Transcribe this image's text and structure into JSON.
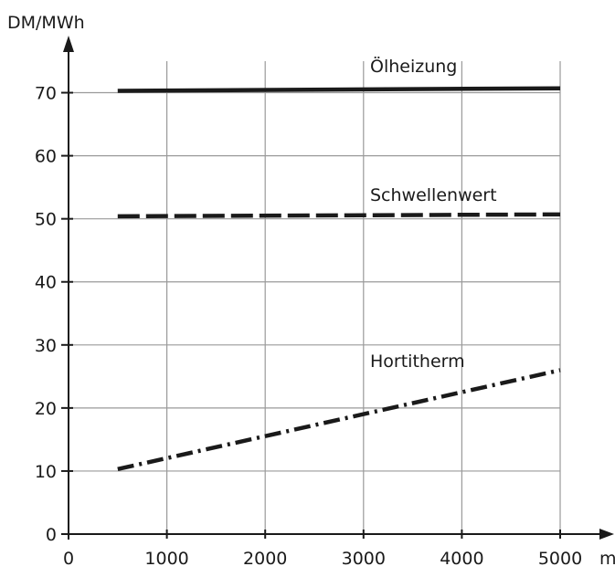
{
  "chart_data": {
    "type": "line",
    "title": "",
    "ylabel": "DM/MWh",
    "xlabel": "m",
    "xlim": [
      0,
      5000
    ],
    "ylim": [
      0,
      75
    ],
    "x_ticks": [
      0,
      1000,
      2000,
      3000,
      4000,
      5000
    ],
    "x_tick_labels": [
      "0",
      "1000",
      "2000",
      "3000",
      "4000",
      "5000"
    ],
    "y_ticks": [
      0,
      10,
      20,
      30,
      40,
      50,
      60,
      70
    ],
    "y_tick_labels": [
      "0",
      "10",
      "20",
      "30",
      "40",
      "50",
      "60",
      "70"
    ],
    "grid": true,
    "series": [
      {
        "name": "Ölheizung",
        "x": [
          500,
          5000
        ],
        "y": [
          70.3,
          70.7
        ],
        "style": "solid"
      },
      {
        "name": "Schwellenwert",
        "x": [
          500,
          5000
        ],
        "y": [
          50.4,
          50.7
        ],
        "style": "dashed"
      },
      {
        "name": "Hortitherm",
        "x": [
          500,
          5000
        ],
        "y": [
          10.3,
          26.0
        ],
        "style": "dashdot"
      }
    ],
    "colors": {
      "ink": "#1a1a1a",
      "grid": "#9a9a9a",
      "background": "#ffffff"
    }
  }
}
